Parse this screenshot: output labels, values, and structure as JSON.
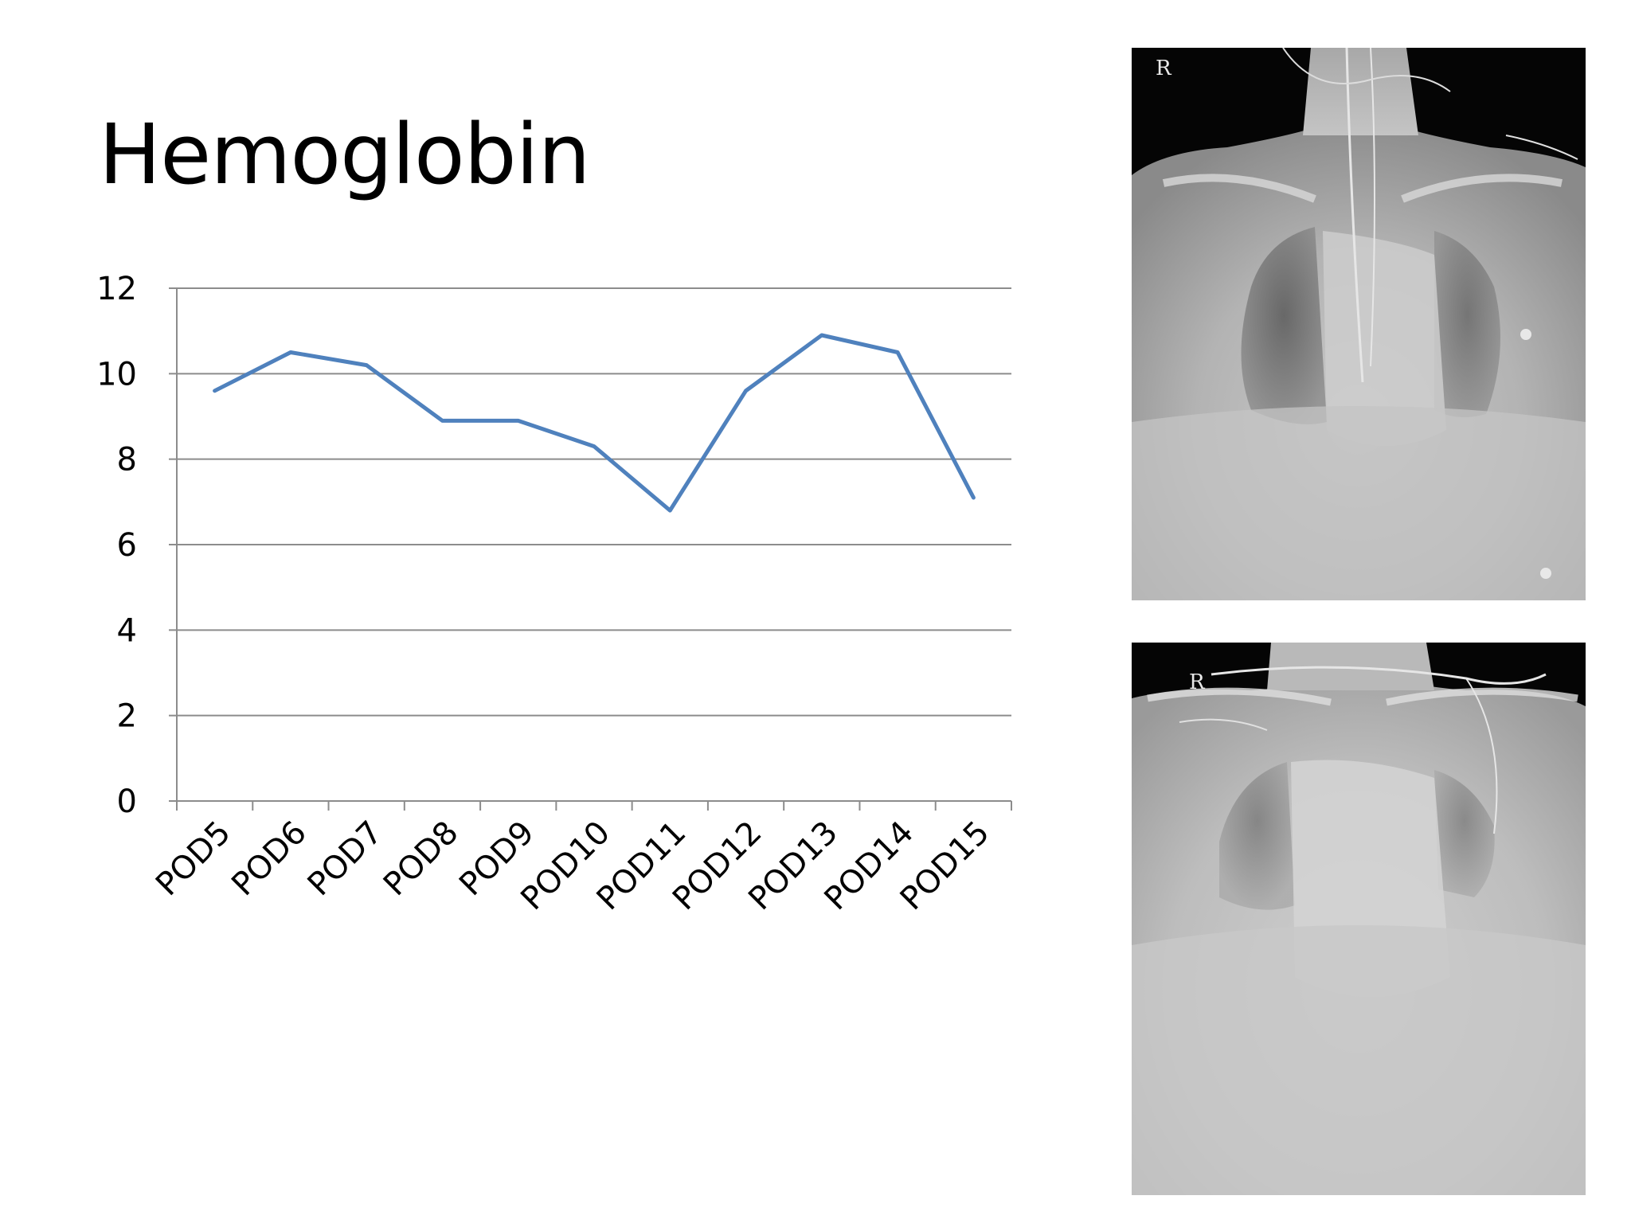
{
  "slide": {
    "title": "Hemoglobin"
  },
  "chart_data": {
    "type": "line",
    "categories": [
      "POD5",
      "POD6",
      "POD7",
      "POD8",
      "POD9",
      "POD10",
      "POD11",
      "POD12",
      "POD13",
      "POD14",
      "POD15"
    ],
    "series": [
      {
        "values": [
          9.6,
          10.5,
          10.2,
          8.9,
          8.9,
          8.3,
          6.8,
          9.6,
          10.9,
          10.5,
          7.1
        ],
        "color": "#4f81bd"
      }
    ],
    "yticks": [
      "0",
      "2",
      "4",
      "6",
      "8",
      "10",
      "12"
    ],
    "ylim": [
      0,
      12
    ],
    "grid": true,
    "legend": "none"
  },
  "images": {
    "xray_top": {
      "kind": "chest x-ray (frontal)",
      "marker": "R"
    },
    "xray_bottom": {
      "kind": "chest x-ray (frontal)",
      "marker": "R"
    }
  }
}
